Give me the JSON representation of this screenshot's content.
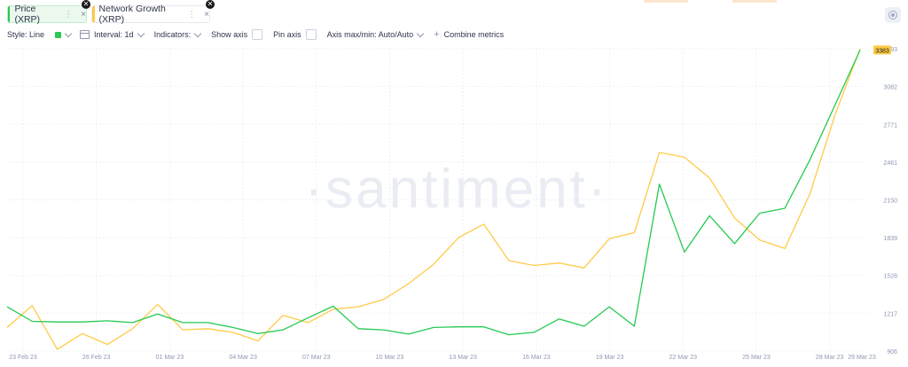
{
  "metrics": [
    {
      "label": "Price (XRP)",
      "color": "#26c953"
    },
    {
      "label": "Network Growth (XRP)",
      "color": "#ffcb47"
    }
  ],
  "toolbar": {
    "style_label": "Style: Line",
    "interval_label": "Interval: 1d",
    "indicators_label": "Indicators:",
    "show_axis_label": "Show axis",
    "pin_axis_label": "Pin axis",
    "axis_maxmin_label": "Axis max/min: Auto/Auto",
    "combine_label": "Combine metrics"
  },
  "icons": {
    "close": "×",
    "more": "⋮",
    "badge_close": "✕",
    "plus": "+"
  },
  "watermark": "·santiment·",
  "chart_data": {
    "type": "line",
    "x_labels": [
      "23 Feb 23",
      "26 Feb 23",
      "01 Mar 23",
      "04 Mar 23",
      "07 Mar 23",
      "10 Mar 23",
      "13 Mar 23",
      "16 Mar 23",
      "19 Mar 23",
      "22 Mar 23",
      "25 Mar 23",
      "28 Mar 23",
      "29 Mar 23"
    ],
    "y_ticks": [
      906,
      1217,
      1528,
      1839,
      2150,
      2461,
      2771,
      3082,
      3393
    ],
    "ylim": [
      906,
      3393
    ],
    "last_value_label": "3383",
    "grid": true,
    "series": [
      {
        "name": "Network Growth (XRP)",
        "color": "#ffcb47",
        "values": [
          1100,
          1280,
          920,
          1050,
          960,
          1090,
          1290,
          1080,
          1090,
          1060,
          990,
          1200,
          1140,
          1250,
          1270,
          1330,
          1460,
          1620,
          1840,
          1950,
          1650,
          1610,
          1630,
          1590,
          1830,
          1880,
          2540,
          2500,
          2330,
          2000,
          1820,
          1750,
          2200,
          2850,
          3393
        ]
      },
      {
        "name": "Price (XRP)",
        "color": "#26c953",
        "values": [
          1270,
          1150,
          1145,
          1145,
          1155,
          1140,
          1210,
          1140,
          1140,
          1100,
          1050,
          1080,
          1180,
          1275,
          1090,
          1080,
          1045,
          1100,
          1105,
          1105,
          1040,
          1060,
          1170,
          1110,
          1270,
          1110,
          2280,
          1720,
          2020,
          1790,
          2040,
          2080,
          2480,
          2930,
          3383
        ]
      }
    ]
  }
}
